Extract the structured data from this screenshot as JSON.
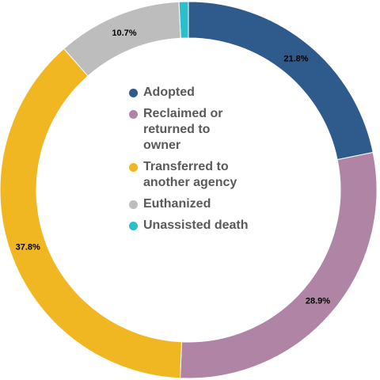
{
  "chart_data": {
    "type": "pie",
    "variant": "donut",
    "start_angle_deg": 0,
    "direction": "clockwise",
    "legend_position": "center",
    "slices": [
      {
        "name": "Adopted",
        "value": 21.8,
        "label": "21.8%",
        "color": "#2E5A8C"
      },
      {
        "name": "Reclaimed or\nreturned to\nowner",
        "value": 28.9,
        "label": "28.9%",
        "color": "#B084A4"
      },
      {
        "name": "Transferred to\nanother agency",
        "value": 37.8,
        "label": "37.8%",
        "color": "#F0B722"
      },
      {
        "name": "Euthanized",
        "value": 10.7,
        "label": "10.7%",
        "color": "#BDBDBD"
      },
      {
        "name": "Unassisted death",
        "value": 0.8,
        "label": "",
        "color": "#2CBFC9"
      }
    ]
  }
}
